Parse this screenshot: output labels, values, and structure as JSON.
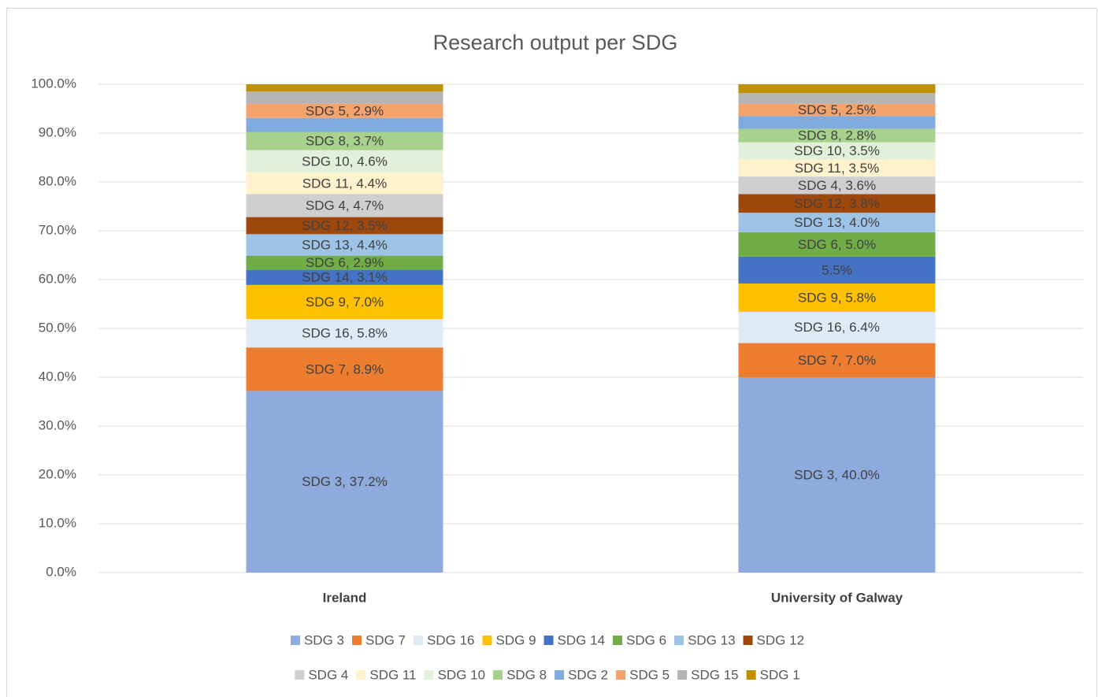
{
  "chart_data": {
    "type": "stacked_bar",
    "title": "Research output per SDG",
    "categories": [
      "Ireland",
      "University of Galway"
    ],
    "ylim": [
      0,
      100
    ],
    "yticks": [
      {
        "value": 0,
        "label": "0.0%"
      },
      {
        "value": 10,
        "label": "10.0%"
      },
      {
        "value": 20,
        "label": "20.0%"
      },
      {
        "value": 30,
        "label": "30.0%"
      },
      {
        "value": 40,
        "label": "40.0%"
      },
      {
        "value": 50,
        "label": "50.0%"
      },
      {
        "value": 60,
        "label": "60.0%"
      },
      {
        "value": 70,
        "label": "70.0%"
      },
      {
        "value": 80,
        "label": "80.0%"
      },
      {
        "value": 90,
        "label": "90.0%"
      },
      {
        "value": 100,
        "label": "100.0%"
      }
    ],
    "grid": true,
    "legend": "bottom",
    "series": [
      {
        "name": "SDG 3",
        "color": "#8faadc",
        "values": [
          37.2,
          40.0
        ],
        "value_labels": [
          "SDG 3, 37.2%",
          "SDG 3, 40.0%"
        ]
      },
      {
        "name": "SDG 7",
        "color": "#ed7d31",
        "values": [
          8.9,
          7.0
        ],
        "value_labels": [
          "SDG 7, 8.9%",
          "SDG 7, 7.0%"
        ]
      },
      {
        "name": "SDG 16",
        "color": "#deebf7",
        "values": [
          5.8,
          6.4
        ],
        "value_labels": [
          "SDG 16, 5.8%",
          "SDG 16, 6.4%"
        ]
      },
      {
        "name": "SDG 9",
        "color": "#ffc000",
        "values": [
          7.0,
          5.8
        ],
        "value_labels": [
          "SDG 9, 7.0%",
          "SDG 9, 5.8%"
        ]
      },
      {
        "name": "SDG 14",
        "color": "#4472c4",
        "values": [
          3.1,
          5.5
        ],
        "value_labels": [
          "SDG 14, 3.1%",
          "5.5%"
        ]
      },
      {
        "name": "SDG 6",
        "color": "#70ad47",
        "values": [
          2.9,
          5.0
        ],
        "value_labels": [
          "SDG 6, 2.9%",
          "SDG 6, 5.0%"
        ]
      },
      {
        "name": "SDG 13",
        "color": "#9dc3e6",
        "values": [
          4.4,
          4.0
        ],
        "value_labels": [
          "SDG 13, 4.4%",
          "SDG 13, 4.0%"
        ]
      },
      {
        "name": "SDG 12",
        "color": "#9e480e",
        "values": [
          3.5,
          3.8
        ],
        "value_labels": [
          "SDG 12, 3.5%",
          "SDG 12, 3.8%"
        ]
      },
      {
        "name": "SDG 4",
        "color": "#d0cece",
        "values": [
          4.7,
          3.6
        ],
        "value_labels": [
          "SDG 4, 4.7%",
          "SDG 4, 3.6%"
        ]
      },
      {
        "name": "SDG 11",
        "color": "#fff2cc",
        "values": [
          4.4,
          3.5
        ],
        "value_labels": [
          "SDG 11, 4.4%",
          "SDG 11, 3.5%"
        ]
      },
      {
        "name": "SDG 10",
        "color": "#e2f0d9",
        "values": [
          4.6,
          3.5
        ],
        "value_labels": [
          "SDG 10, 4.6%",
          "SDG 10, 3.5%"
        ]
      },
      {
        "name": "SDG 8",
        "color": "#a9d18e",
        "values": [
          3.7,
          2.8
        ],
        "value_labels": [
          "SDG 8, 3.7%",
          "SDG 8, 2.8%"
        ]
      },
      {
        "name": "SDG 2",
        "color": "#7fabdf",
        "values": [
          2.9,
          2.6
        ],
        "value_labels": [
          null,
          null
        ]
      },
      {
        "name": "SDG 5",
        "color": "#f4a26c",
        "values": [
          2.9,
          2.5
        ],
        "value_labels": [
          "SDG 5, 2.9%",
          "SDG 5, 2.5%"
        ]
      },
      {
        "name": "SDG 15",
        "color": "#b4b4b4",
        "values": [
          2.5,
          2.2
        ],
        "value_labels": [
          null,
          null
        ]
      },
      {
        "name": "SDG 1",
        "color": "#bf9000",
        "values": [
          1.5,
          1.8
        ],
        "value_labels": [
          null,
          null
        ]
      }
    ]
  }
}
